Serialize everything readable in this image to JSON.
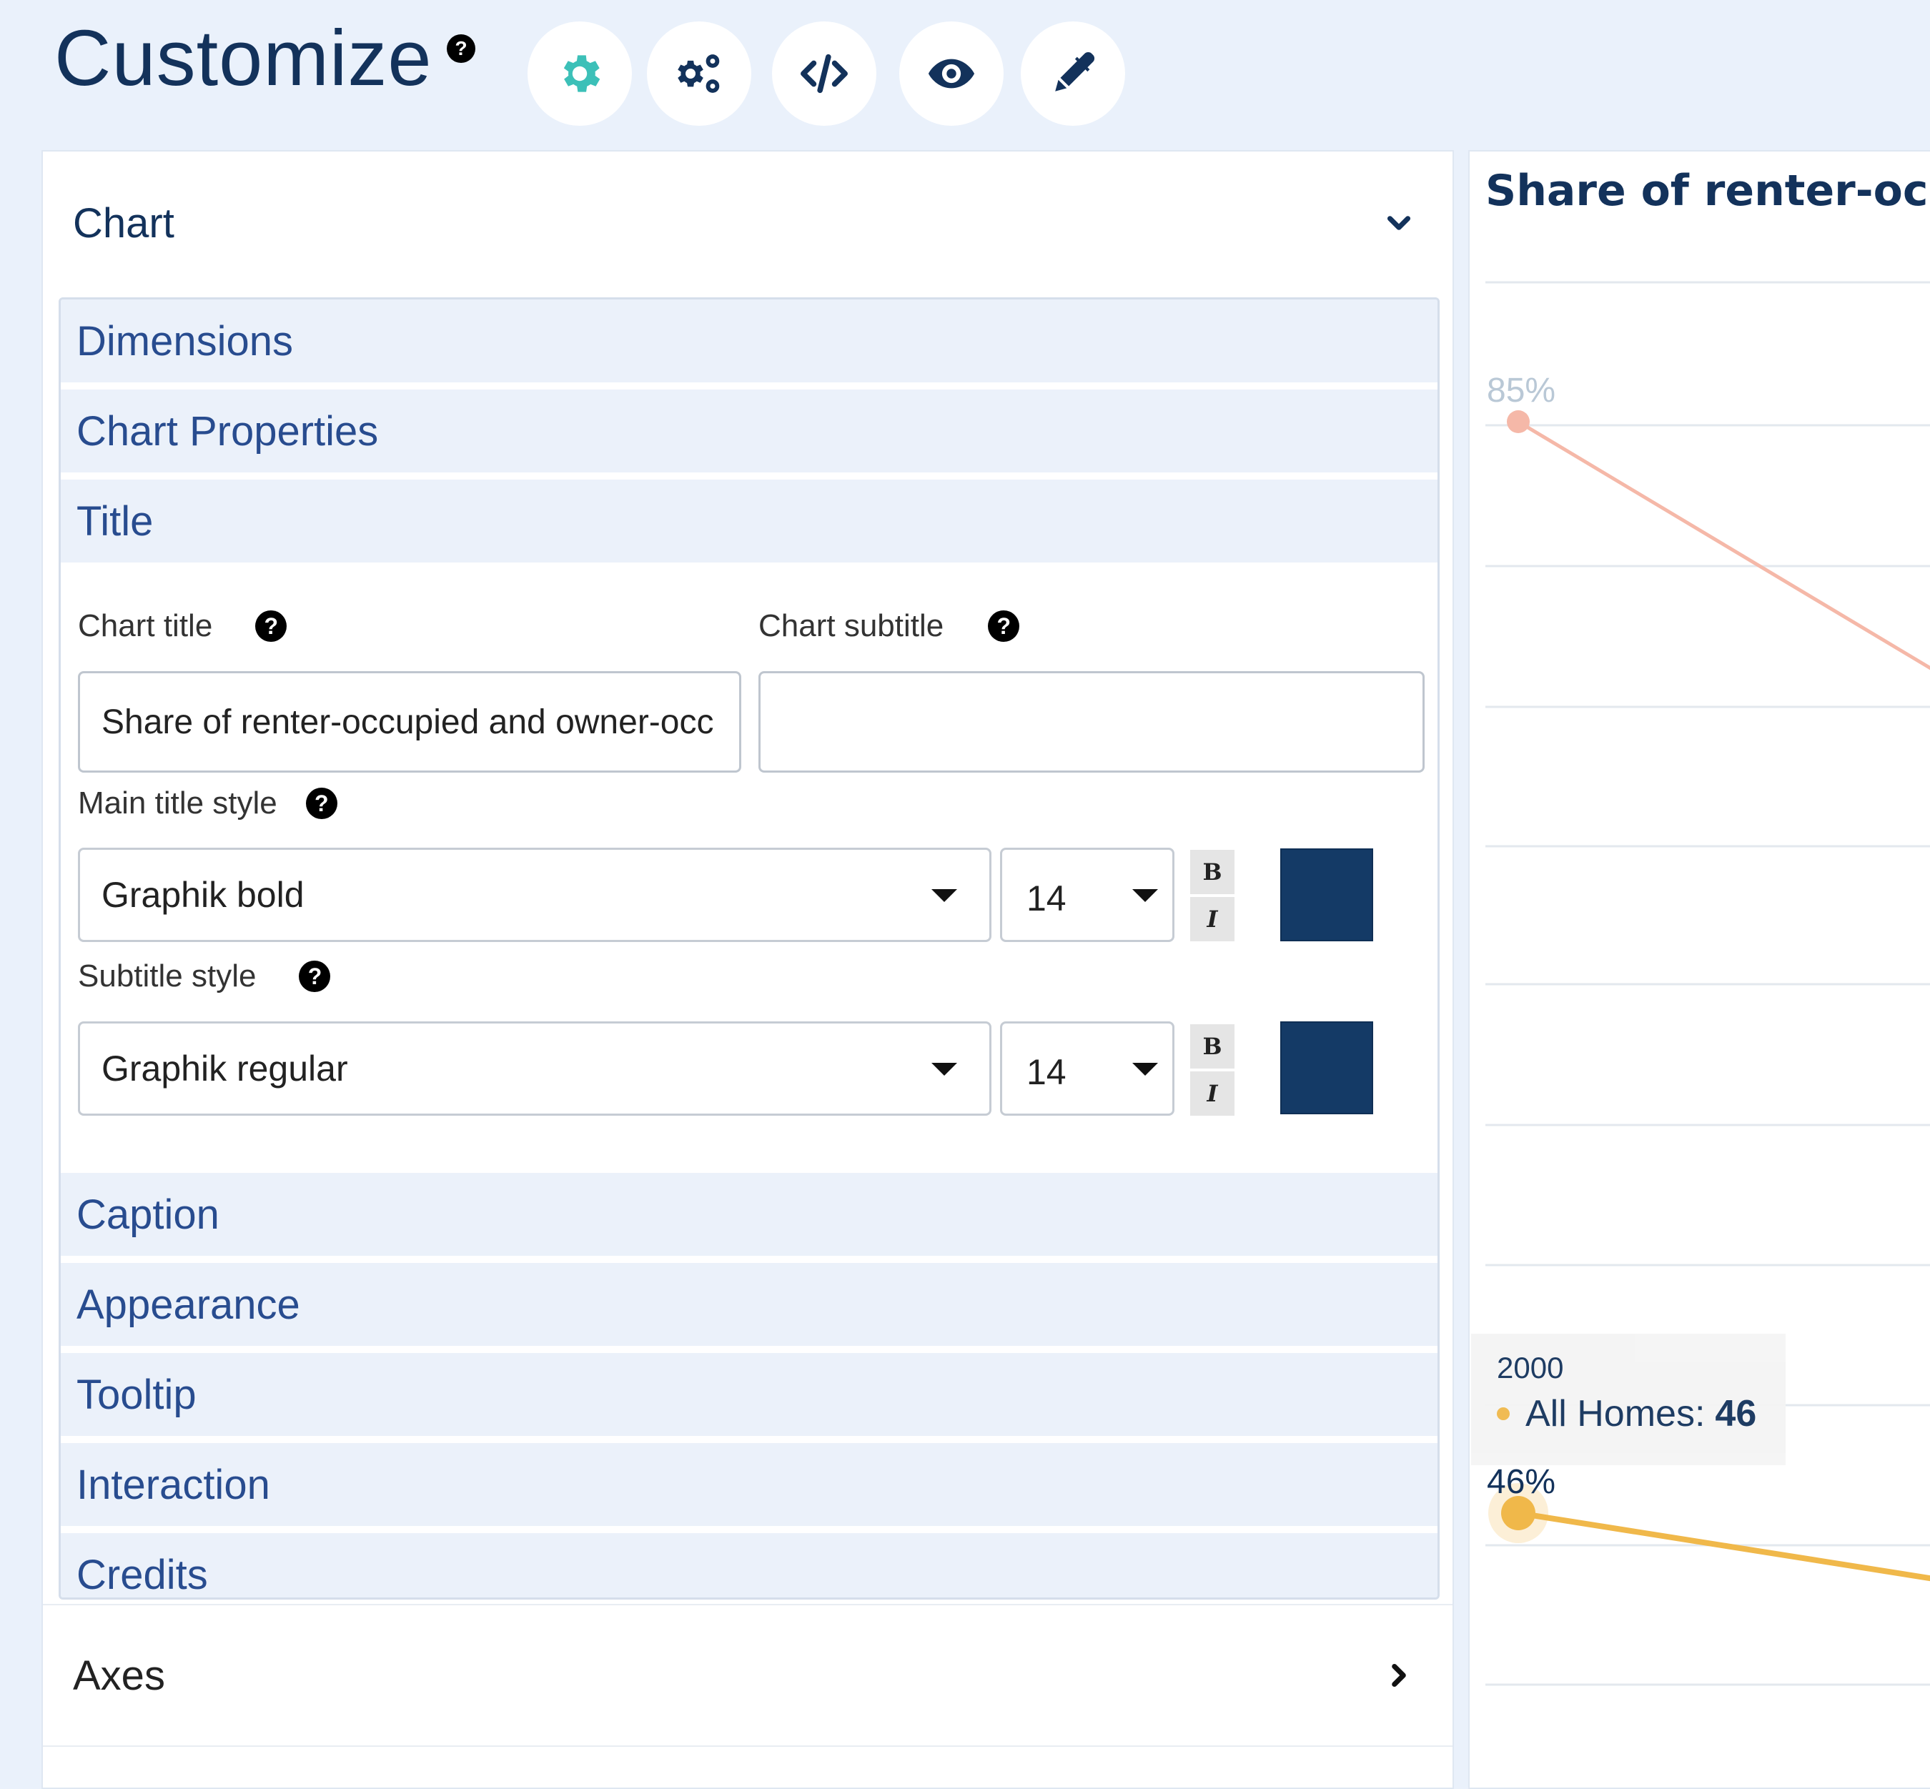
{
  "header": {
    "title": "Customize",
    "help": "?",
    "toolbar": [
      {
        "icon": "gear-icon",
        "active": true
      },
      {
        "icon": "gears-icon"
      },
      {
        "icon": "code-icon"
      },
      {
        "icon": "eye-icon"
      },
      {
        "icon": "pen-icon"
      }
    ]
  },
  "panel": {
    "chart_section": "Chart",
    "accordions": {
      "dimensions": "Dimensions",
      "chart_properties": "Chart Properties",
      "title": "Title",
      "caption": "Caption",
      "appearance": "Appearance",
      "tooltip": "Tooltip",
      "interaction": "Interaction",
      "credits": "Credits"
    },
    "title_form": {
      "chart_title_label": "Chart title",
      "chart_title_value": "Share of renter-occupied and owner-occ",
      "chart_subtitle_label": "Chart subtitle",
      "chart_subtitle_value": "",
      "main_title_style_label": "Main title style",
      "main_title_font": "Graphik bold",
      "main_title_size": "14",
      "subtitle_style_label": "Subtitle style",
      "subtitle_font": "Graphik regular",
      "subtitle_size": "14",
      "bold_label": "B",
      "italic_label": "I",
      "title_color": "#143a66",
      "subtitle_color": "#143a66",
      "help": "?"
    },
    "axes_section": "Axes"
  },
  "chart_data": {
    "type": "line",
    "title": "Share of renter-occup",
    "series": [
      {
        "name": "",
        "color": "#f5b8a8",
        "points": [
          {
            "x": "2000",
            "y": 85
          }
        ],
        "label": "85%"
      },
      {
        "name": "All Homes",
        "color": "#f0b84a",
        "points": [
          {
            "x": "2000",
            "y": 46
          }
        ],
        "label": "46%"
      }
    ],
    "tooltip": {
      "year": "2000",
      "series": "All Homes:",
      "value": "46"
    }
  }
}
